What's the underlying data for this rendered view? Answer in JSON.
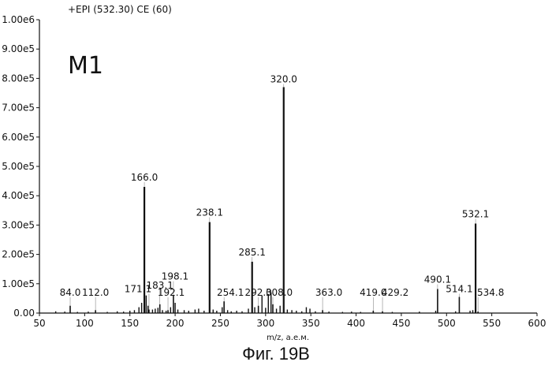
{
  "chart_data": {
    "type": "line",
    "title": "+EPI (532.30) CE (60)",
    "annotation": "M1",
    "xlabel": "m/z, а.е.м.",
    "ylabel": "",
    "xlim": [
      50,
      600
    ],
    "ylim": [
      0,
      1000000
    ],
    "xticks": [
      50,
      100,
      150,
      200,
      250,
      300,
      350,
      400,
      450,
      500,
      550,
      600
    ],
    "yticks": [
      {
        "value": 0,
        "label": "0.00"
      },
      {
        "value": 100000,
        "label": "1.00e5"
      },
      {
        "value": 200000,
        "label": "2.00e5"
      },
      {
        "value": 300000,
        "label": "3.00e5"
      },
      {
        "value": 400000,
        "label": "4.00e5"
      },
      {
        "value": 500000,
        "label": "5.00e5"
      },
      {
        "value": 600000,
        "label": "6.00e5"
      },
      {
        "value": 700000,
        "label": "7.00e5"
      },
      {
        "value": 800000,
        "label": "8.00e5"
      },
      {
        "value": 900000,
        "label": "9.00e5"
      },
      {
        "value": 1000000,
        "label": "1.00e6"
      }
    ],
    "peaks": [
      {
        "x": 84.0,
        "y": 25000,
        "label": "84.0"
      },
      {
        "x": 112.0,
        "y": 10000,
        "label": "112.0"
      },
      {
        "x": 166.0,
        "y": 430000,
        "label": "166.0"
      },
      {
        "x": 171.1,
        "y": 12000,
        "label": "171.1"
      },
      {
        "x": 183.1,
        "y": 30000,
        "label": "183.1"
      },
      {
        "x": 198.1,
        "y": 60000,
        "label": "198.1"
      },
      {
        "x": 192.1,
        "y": 10000,
        "label": "192.1"
      },
      {
        "x": 238.1,
        "y": 310000,
        "label": "238.1"
      },
      {
        "x": 254.1,
        "y": 40000,
        "label": "254.1"
      },
      {
        "x": 285.1,
        "y": 175000,
        "label": "285.1"
      },
      {
        "x": 292.0,
        "y": 25000,
        "label": "292.0"
      },
      {
        "x": 308.0,
        "y": 30000,
        "label": "308.0"
      },
      {
        "x": 320.0,
        "y": 770000,
        "label": "320.0"
      },
      {
        "x": 363.0,
        "y": 10000,
        "label": "363.0"
      },
      {
        "x": 419.0,
        "y": 8000,
        "label": "419.0"
      },
      {
        "x": 429.2,
        "y": 6000,
        "label": "429.2"
      },
      {
        "x": 490.1,
        "y": 82000,
        "label": "490.1"
      },
      {
        "x": 514.1,
        "y": 55000,
        "label": "514.1"
      },
      {
        "x": 532.1,
        "y": 305000,
        "label": "532.1"
      },
      {
        "x": 534.8,
        "y": 5000,
        "label": "534.8"
      }
    ],
    "minor_peaks": [
      {
        "x": 68,
        "y": 6000
      },
      {
        "x": 78,
        "y": 5000
      },
      {
        "x": 92,
        "y": 4000
      },
      {
        "x": 104,
        "y": 5000
      },
      {
        "x": 125,
        "y": 4000
      },
      {
        "x": 136,
        "y": 6000
      },
      {
        "x": 143,
        "y": 5000
      },
      {
        "x": 150,
        "y": 8000
      },
      {
        "x": 155,
        "y": 10000
      },
      {
        "x": 160,
        "y": 20000
      },
      {
        "x": 163,
        "y": 35000
      },
      {
        "x": 168,
        "y": 60000
      },
      {
        "x": 170,
        "y": 25000
      },
      {
        "x": 175,
        "y": 12000
      },
      {
        "x": 178,
        "y": 15000
      },
      {
        "x": 181,
        "y": 18000
      },
      {
        "x": 186,
        "y": 10000
      },
      {
        "x": 190,
        "y": 8000
      },
      {
        "x": 195,
        "y": 20000
      },
      {
        "x": 200,
        "y": 35000
      },
      {
        "x": 203,
        "y": 12000
      },
      {
        "x": 210,
        "y": 10000
      },
      {
        "x": 215,
        "y": 8000
      },
      {
        "x": 222,
        "y": 12000
      },
      {
        "x": 226,
        "y": 15000
      },
      {
        "x": 232,
        "y": 8000
      },
      {
        "x": 242,
        "y": 12000
      },
      {
        "x": 246,
        "y": 8000
      },
      {
        "x": 252,
        "y": 20000
      },
      {
        "x": 258,
        "y": 10000
      },
      {
        "x": 262,
        "y": 6000
      },
      {
        "x": 268,
        "y": 8000
      },
      {
        "x": 274,
        "y": 6000
      },
      {
        "x": 281,
        "y": 15000
      },
      {
        "x": 288,
        "y": 20000
      },
      {
        "x": 296,
        "y": 60000
      },
      {
        "x": 300,
        "y": 18000
      },
      {
        "x": 303,
        "y": 65000
      },
      {
        "x": 306,
        "y": 70000
      },
      {
        "x": 312,
        "y": 15000
      },
      {
        "x": 316,
        "y": 25000
      },
      {
        "x": 324,
        "y": 12000
      },
      {
        "x": 329,
        "y": 10000
      },
      {
        "x": 334,
        "y": 8000
      },
      {
        "x": 340,
        "y": 6000
      },
      {
        "x": 345,
        "y": 20000
      },
      {
        "x": 349,
        "y": 15000
      },
      {
        "x": 355,
        "y": 6000
      },
      {
        "x": 370,
        "y": 5000
      },
      {
        "x": 385,
        "y": 4000
      },
      {
        "x": 395,
        "y": 5000
      },
      {
        "x": 405,
        "y": 4000
      },
      {
        "x": 440,
        "y": 4000
      },
      {
        "x": 470,
        "y": 5000
      },
      {
        "x": 488,
        "y": 8000
      },
      {
        "x": 510,
        "y": 6000
      },
      {
        "x": 526,
        "y": 8000
      },
      {
        "x": 529,
        "y": 10000
      }
    ]
  },
  "caption": "Фиг. 19B"
}
